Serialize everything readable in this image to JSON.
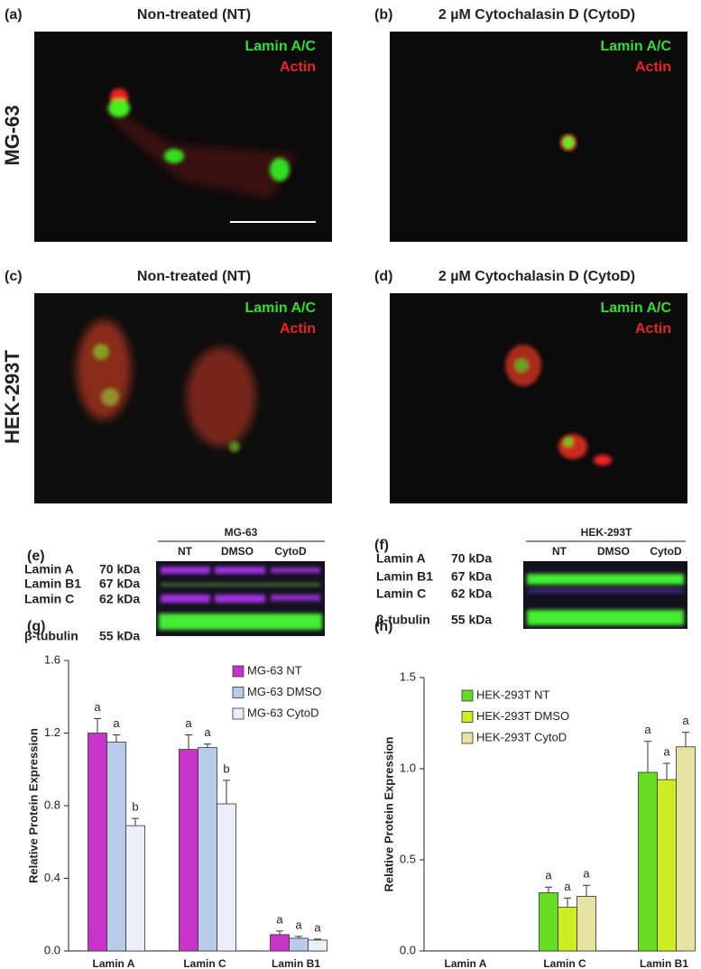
{
  "panels": [
    {
      "label": "(a)",
      "title": "Non-treated (NT)",
      "legend": [
        "Lamin A/C",
        "Actin"
      ]
    },
    {
      "label": "(b)",
      "title": "2 µM Cytochalasin D (CytoD)",
      "legend": [
        "Lamin A/C",
        "Actin"
      ]
    },
    {
      "label": "(c)",
      "title": "Non-treated (NT)",
      "legend": [
        "Lamin A/C",
        "Actin"
      ]
    },
    {
      "label": "(d)",
      "title": "2 µM Cytochalasin D (CytoD)",
      "legend": [
        "Lamin A/C",
        "Actin"
      ]
    }
  ],
  "rows": [
    "MG-63",
    "HEK-293T"
  ],
  "blots": [
    {
      "label": "(e)",
      "header": "MG-63",
      "lanes": [
        "NT",
        "DMSO",
        "CytoD"
      ],
      "bands": [
        {
          "name": "Lamin A",
          "size": "70 kDa"
        },
        {
          "name": "Lamin B1",
          "size": "67 kDa"
        },
        {
          "name": "Lamin C",
          "size": "62 kDa"
        },
        {
          "name": "β-tubulin",
          "size": "55 kDa"
        }
      ]
    },
    {
      "label": "(f)",
      "header": "HEK-293T",
      "lanes": [
        "NT",
        "DMSO",
        "CytoD"
      ],
      "bands": [
        {
          "name": "Lamin A",
          "size": "70 kDa"
        },
        {
          "name": "Lamin B1",
          "size": "67 kDa"
        },
        {
          "name": "Lamin C",
          "size": "62 kDa"
        },
        {
          "name": "β-tubulin",
          "size": "55 kDa"
        }
      ]
    }
  ],
  "chart_data": [
    {
      "type": "bar",
      "label": "(g)",
      "y_label": "Relative Protein Expression",
      "categories": [
        "Lamin A",
        "Lamin C",
        "Lamin B1"
      ],
      "series": [
        {
          "name": "MG-63 NT",
          "color": "#c833c8",
          "values": [
            1.2,
            1.11,
            0.09
          ],
          "errors": [
            0.08,
            0.08,
            0.02
          ],
          "letters": [
            "a",
            "a",
            "a"
          ]
        },
        {
          "name": "MG-63 DMSO",
          "color": "#b8cbe8",
          "values": [
            1.15,
            1.12,
            0.07
          ],
          "errors": [
            0.04,
            0.02,
            0.01
          ],
          "letters": [
            "a",
            "a",
            "a"
          ]
        },
        {
          "name": "MG-63 CytoD",
          "color": "#eeeefa",
          "values": [
            0.69,
            0.81,
            0.06
          ],
          "errors": [
            0.04,
            0.13,
            0.005
          ],
          "letters": [
            "b",
            "b",
            "a"
          ]
        }
      ],
      "ylim": [
        0,
        1.6
      ],
      "yticks": [
        {
          "value": 0,
          "label": "0.0"
        },
        0.4,
        0.8,
        1.2,
        1.6
      ]
    },
    {
      "type": "bar",
      "label": "(h)",
      "y_label": "Relative Protein Expression",
      "categories": [
        "Lamin A",
        "Lamin C",
        "Lamin B1"
      ],
      "series": [
        {
          "name": "HEK-293T NT",
          "color": "#66dd22",
          "values": [
            null,
            0.32,
            0.98
          ],
          "errors": [
            null,
            0.03,
            0.17
          ],
          "letters": [
            null,
            "a",
            "a"
          ]
        },
        {
          "name": "HEK-293T DMSO",
          "color": "#ccee22",
          "values": [
            null,
            0.24,
            0.94
          ],
          "errors": [
            null,
            0.05,
            0.09
          ],
          "letters": [
            null,
            "a",
            "a"
          ]
        },
        {
          "name": "HEK-293T CytoD",
          "color": "#e6e2a2",
          "values": [
            null,
            0.3,
            1.12
          ],
          "errors": [
            null,
            0.06,
            0.08
          ],
          "letters": [
            null,
            "a",
            "a"
          ]
        }
      ],
      "ylim": [
        0,
        1.5
      ],
      "yticks": [
        {
          "value": 0,
          "label": "0.0"
        },
        0.5,
        {
          "value": 1,
          "label": "1.0"
        },
        1.5
      ]
    }
  ]
}
